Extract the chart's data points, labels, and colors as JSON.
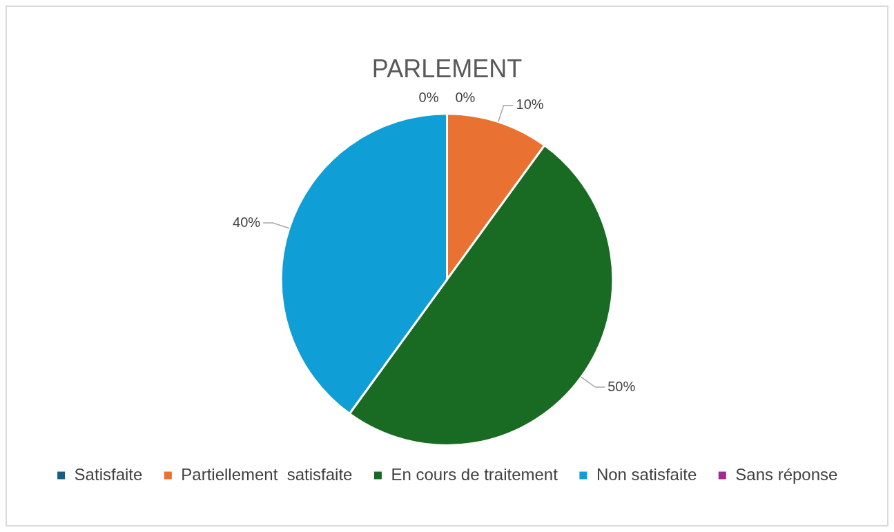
{
  "chart_data": {
    "type": "pie",
    "title": "PARLEMENT",
    "categories": [
      "Satisfaite",
      "Partiellement  satisfaite",
      "En cours de traitement",
      "Non satisfaite",
      "Sans réponse"
    ],
    "values": [
      0,
      10,
      50,
      40,
      0
    ],
    "value_labels": [
      "0%",
      "10%",
      "50%",
      "40%",
      "0%"
    ],
    "colors": [
      "#156082",
      "#e97132",
      "#196b24",
      "#0f9ed5",
      "#a02b93"
    ],
    "legend": "bottom"
  }
}
